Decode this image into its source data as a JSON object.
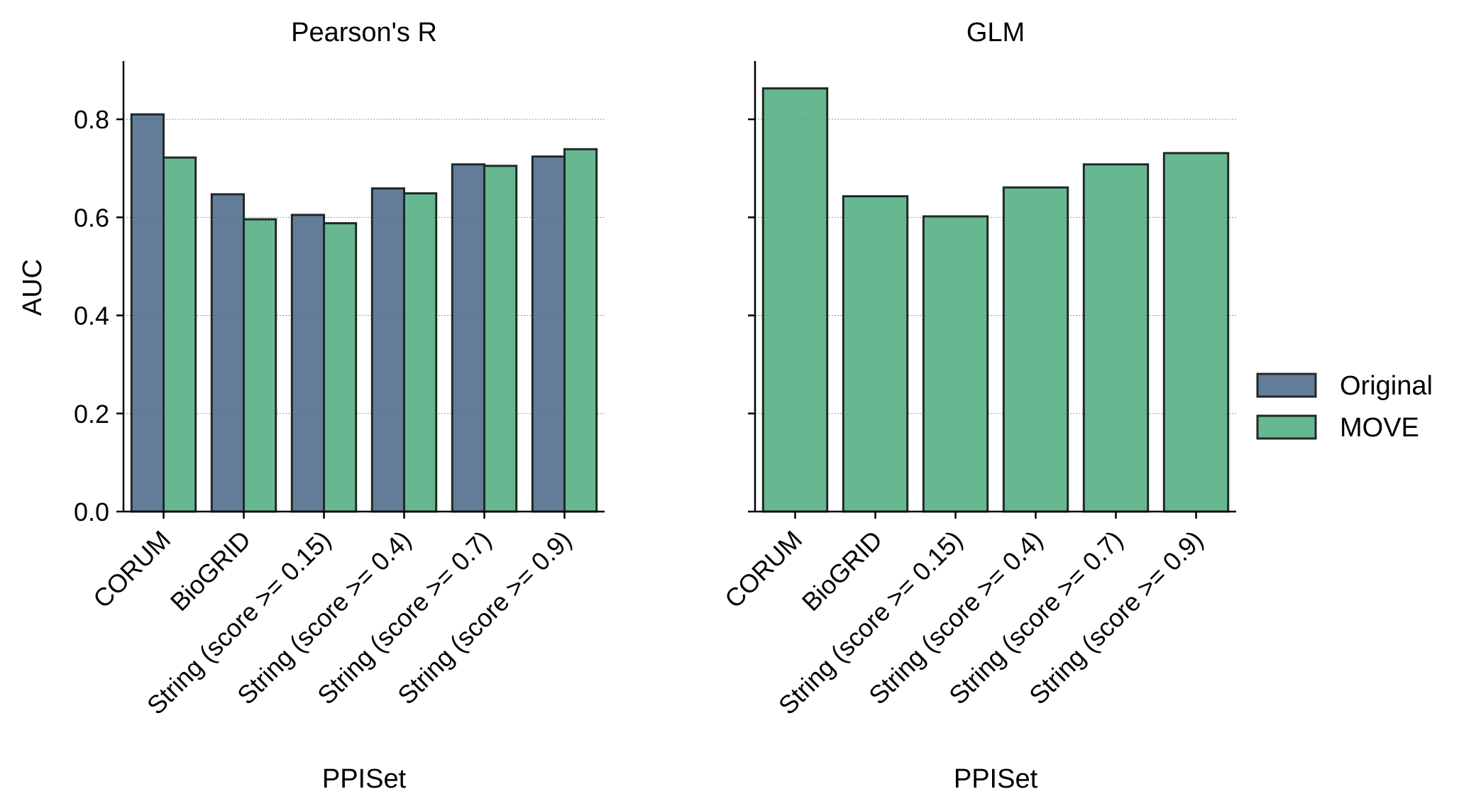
{
  "chart_data": [
    {
      "type": "bar",
      "title": "Pearson's R",
      "xlabel": "PPISet",
      "ylabel": "AUC",
      "ylim": [
        0,
        0.9
      ],
      "yticks": [
        "0.0",
        "0.2",
        "0.4",
        "0.6",
        "0.8"
      ],
      "grid": "horizontal dotted",
      "categories": [
        "CORUM",
        "BioGRID",
        "String (score >= 0.15)",
        "String (score >= 0.4)",
        "String (score >= 0.7)",
        "String (score >= 0.9)"
      ],
      "series": [
        {
          "name": "Original",
          "values": [
            0.81,
            0.647,
            0.605,
            0.659,
            0.708,
            0.724
          ]
        },
        {
          "name": "MOVE",
          "values": [
            0.722,
            0.596,
            0.588,
            0.649,
            0.705,
            0.739
          ]
        }
      ]
    },
    {
      "type": "bar",
      "title": "GLM",
      "xlabel": "PPISet",
      "ylabel": "",
      "ylim": [
        0,
        0.9
      ],
      "grid": "horizontal dotted",
      "categories": [
        "CORUM",
        "BioGRID",
        "String (score >= 0.15)",
        "String (score >= 0.4)",
        "String (score >= 0.7)",
        "String (score >= 0.9)"
      ],
      "series": [
        {
          "name": "MOVE",
          "values": [
            0.863,
            0.643,
            0.602,
            0.661,
            0.708,
            0.731
          ]
        }
      ]
    }
  ],
  "legend": {
    "position": "right",
    "entries": [
      {
        "label": "Original",
        "color": "#4c6a8a"
      },
      {
        "label": "MOVE",
        "color": "#50ae80"
      }
    ]
  },
  "colors": {
    "Original": "#4c6a8a",
    "MOVE": "#50ae80",
    "edge": "#1f2a28"
  }
}
